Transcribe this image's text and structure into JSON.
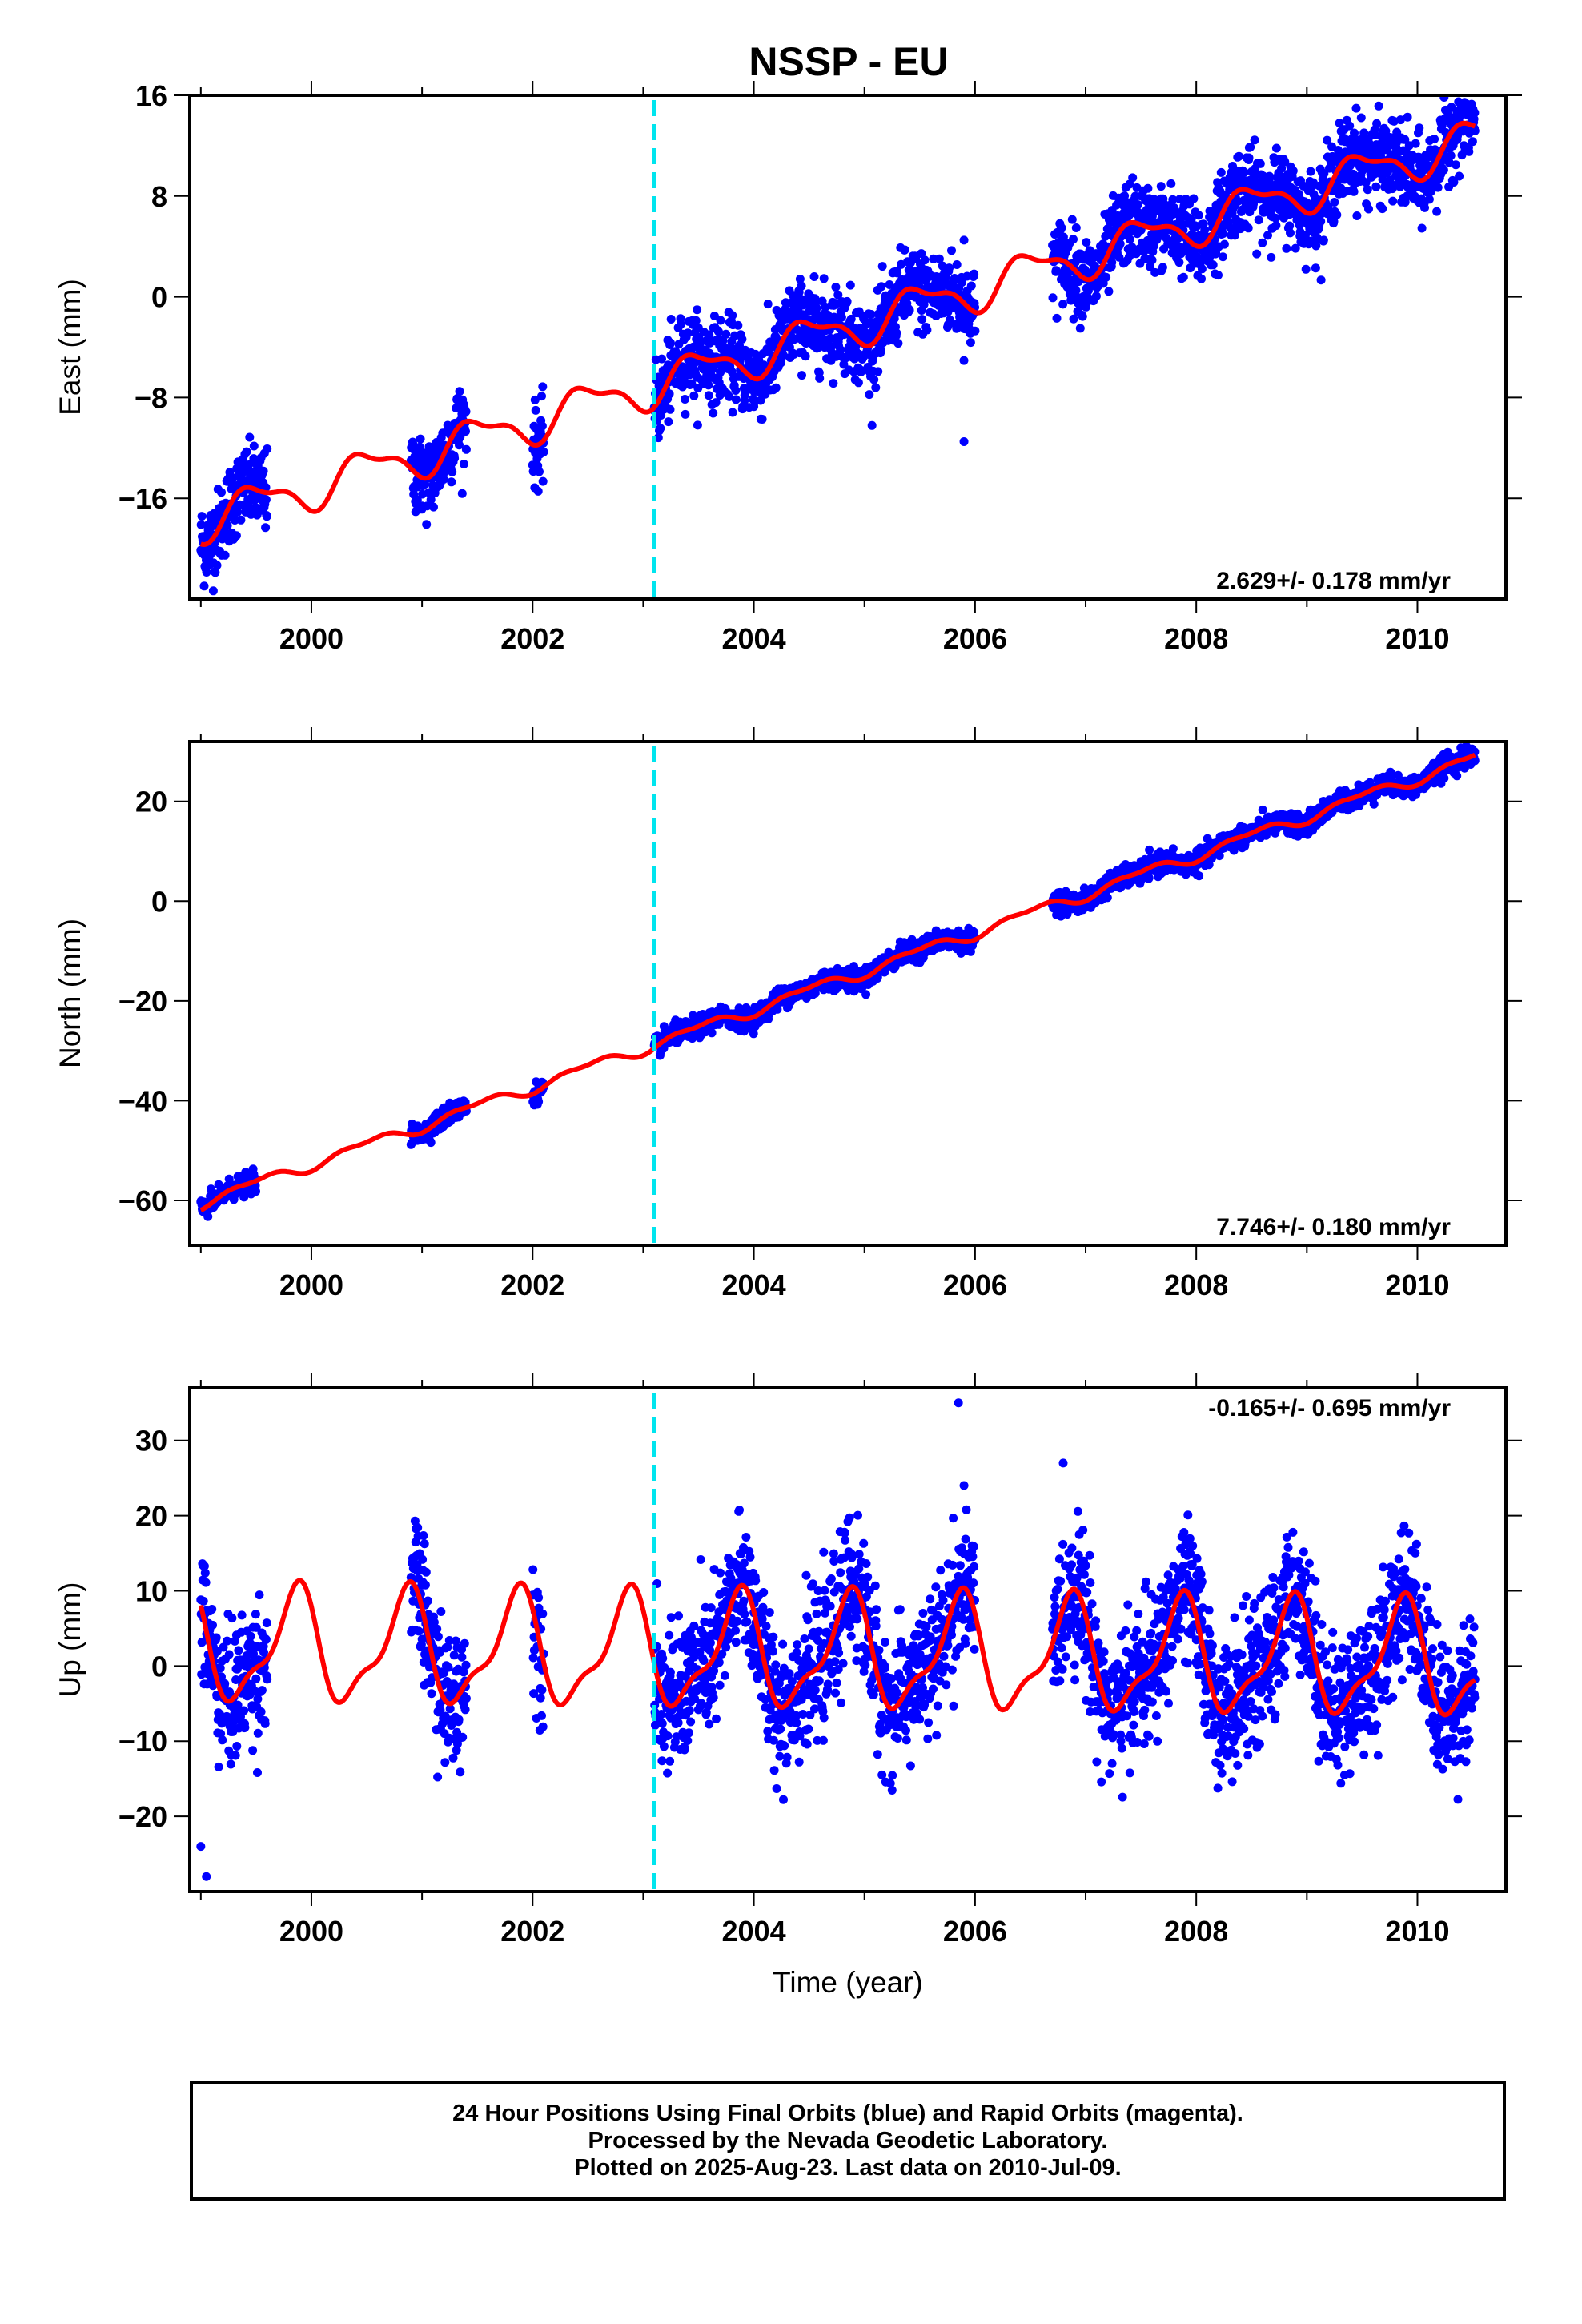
{
  "title": "NSSP - EU",
  "xlabel": "Time (year)",
  "caption": {
    "line1": "24 Hour Positions Using Final Orbits (blue) and Rapid Orbits (magenta).",
    "line2": "Processed by the Nevada Geodetic Laboratory.",
    "line3": "Plotted on 2025-Aug-23. Last data on 2010-Jul-09."
  },
  "colors": {
    "data": "#0000ff",
    "model": "#ff0000",
    "event_line": "#00e5ee",
    "axes": "#000000"
  },
  "chart_data": [
    {
      "type": "scatter",
      "ylabel": "East (mm)",
      "rate_label": "2.629+/- 0.178 mm/yr",
      "xlim": [
        1998.9,
        2010.8
      ],
      "ylim": [
        -24,
        16
      ],
      "xticks": [
        "2000",
        "2002",
        "2004",
        "2006",
        "2008",
        "2010"
      ],
      "yticks": [
        "16",
        "8",
        "0",
        "−8",
        "−16"
      ],
      "event_line_x": 2003.1,
      "data_segments": [
        [
          1999.0,
          1999.6
        ],
        [
          2000.9,
          2001.4
        ],
        [
          2002.0,
          2002.1
        ],
        [
          2003.1,
          2004.0
        ],
        [
          2004.0,
          2006.0
        ],
        [
          2006.7,
          2010.52
        ]
      ],
      "model": {
        "rate": 2.629,
        "intercept_year": 2005.0,
        "intercept": -2.0,
        "annual_amp": 1.5,
        "annual_phase": 0.25,
        "semi_amp": 0.6,
        "semi_phase": 0.2
      },
      "noise": 1.6,
      "outliers": [
        {
          "x": 2005.9,
          "y": -11.5
        },
        {
          "x": 2005.9,
          "y": 4.5
        }
      ],
      "series": [
        {
          "name": "Final Orbits (blue)",
          "color": "#0000ff"
        },
        {
          "name": "Model",
          "color": "#ff0000"
        }
      ]
    },
    {
      "type": "scatter",
      "ylabel": "North (mm)",
      "rate_label": "7.746+/- 0.180 mm/yr",
      "xlim": [
        1998.9,
        2010.8
      ],
      "ylim": [
        -69,
        32
      ],
      "xticks": [
        "2000",
        "2002",
        "2004",
        "2006",
        "2008",
        "2010"
      ],
      "yticks": [
        "20",
        "0",
        "−20",
        "−40",
        "−60"
      ],
      "event_line_x": 2003.1,
      "data_segments": [
        [
          1999.0,
          1999.5
        ],
        [
          2000.9,
          2001.4
        ],
        [
          2002.0,
          2002.1
        ],
        [
          2003.1,
          2004.0
        ],
        [
          2004.0,
          2006.0
        ],
        [
          2006.7,
          2010.52
        ]
      ],
      "model": {
        "rate": 7.746,
        "intercept_year": 2005.0,
        "intercept": -14.0,
        "annual_amp": 1.0,
        "annual_phase": 0.25,
        "semi_amp": 0.5,
        "semi_phase": 0.1
      },
      "noise": 1.0,
      "outliers": [],
      "series": [
        {
          "name": "Final Orbits (blue)",
          "color": "#0000ff"
        },
        {
          "name": "Model",
          "color": "#ff0000"
        }
      ]
    },
    {
      "type": "scatter",
      "ylabel": "Up (mm)",
      "rate_label": "-0.165+/- 0.695 mm/yr",
      "xlim": [
        1998.9,
        2010.8
      ],
      "ylim": [
        -30,
        37
      ],
      "xticks": [
        "2000",
        "2002",
        "2004",
        "2006",
        "2008",
        "2010"
      ],
      "yticks": [
        "30",
        "20",
        "10",
        "0",
        "−10",
        "−20"
      ],
      "event_line_x": 2003.1,
      "data_segments": [
        [
          1999.0,
          1999.6
        ],
        [
          2000.9,
          2001.4
        ],
        [
          2002.0,
          2002.1
        ],
        [
          2003.1,
          2004.0
        ],
        [
          2004.0,
          2006.0
        ],
        [
          2006.7,
          2010.52
        ]
      ],
      "model": {
        "rate": -0.165,
        "intercept_year": 2005.0,
        "intercept": 1.5,
        "annual_amp": 7.0,
        "annual_phase": 0.6,
        "semi_amp": 2.5,
        "semi_phase": 0.3
      },
      "noise": 4.5,
      "outliers": [
        {
          "x": 1999.0,
          "y": -24
        },
        {
          "x": 1999.05,
          "y": -28
        },
        {
          "x": 2005.85,
          "y": 35
        },
        {
          "x": 2005.9,
          "y": 24
        }
      ],
      "series": [
        {
          "name": "Final Orbits (blue)",
          "color": "#0000ff"
        },
        {
          "name": "Model",
          "color": "#ff0000"
        }
      ]
    }
  ]
}
